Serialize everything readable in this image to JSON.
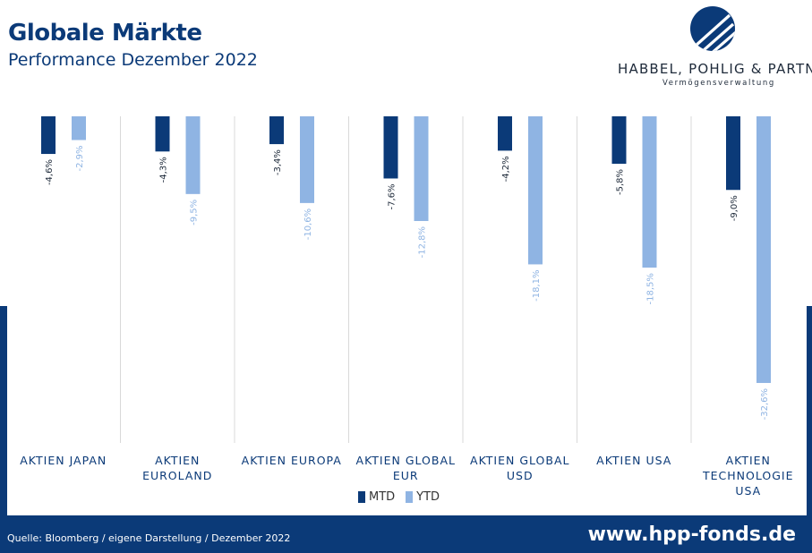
{
  "header": {
    "title": "Globale Märkte",
    "subtitle": "Performance Dezember 2022"
  },
  "logo": {
    "name": "HABBEL, POHLIG & PARTNER",
    "tagline": "Vermögensverwaltung"
  },
  "colors": {
    "navy": "#0b3a78",
    "mtd": "#0b3a78",
    "ytd": "#8fb4e3"
  },
  "chart_data": {
    "type": "bar",
    "categories": [
      [
        "AKTIEN JAPAN"
      ],
      [
        "AKTIEN",
        "EUROLAND"
      ],
      [
        "AKTIEN EUROPA"
      ],
      [
        "AKTIEN GLOBAL",
        "EUR"
      ],
      [
        "AKTIEN GLOBAL",
        "USD"
      ],
      [
        "AKTIEN USA"
      ],
      [
        "AKTIEN",
        "TECHNOLOGIE",
        "USA"
      ]
    ],
    "series": [
      {
        "name": "MTD",
        "color": "#0b3a78",
        "values": [
          -4.6,
          -4.3,
          -3.4,
          -7.6,
          -4.2,
          -5.8,
          -9.0
        ],
        "labels": [
          "-4,6%",
          "-4,3%",
          "-3,4%",
          "-7,6%",
          "-4,2%",
          "-5,8%",
          "-9,0%"
        ]
      },
      {
        "name": "YTD",
        "color": "#8fb4e3",
        "values": [
          -2.9,
          -9.5,
          -10.6,
          -12.8,
          -18.1,
          -18.5,
          -32.6
        ],
        "labels": [
          "-2,9%",
          "-9,5%",
          "-10,6%",
          "-12,8%",
          "-18,1%",
          "-18,5%",
          "-32,6%"
        ]
      }
    ],
    "ylim": [
      -40,
      0
    ],
    "legend_position": "bottom",
    "grid": false
  },
  "footer": {
    "source": "Quelle: Bloomberg / eigene Darstellung / Dezember 2022",
    "website": "www.hpp-fonds.de"
  }
}
